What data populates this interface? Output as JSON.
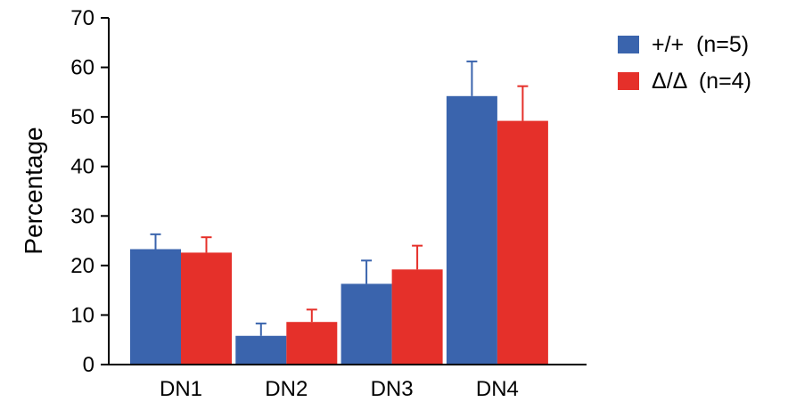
{
  "chart_data": {
    "type": "bar",
    "categories": [
      "DN1",
      "DN2",
      "DN3",
      "DN4"
    ],
    "series": [
      {
        "name": "+/+  (n=5)",
        "values": [
          23.3,
          5.8,
          16.3,
          54.2
        ],
        "errors": [
          3.0,
          2.5,
          4.7,
          7.0
        ],
        "color": "#3a64ad"
      },
      {
        "name": "Δ/Δ  (n=4)",
        "values": [
          22.6,
          8.6,
          19.2,
          49.2
        ],
        "errors": [
          3.1,
          2.5,
          4.8,
          7.0
        ],
        "color": "#e5302a"
      }
    ],
    "ylabel": "Percentage",
    "xlabel": "",
    "ylim": [
      0,
      70
    ],
    "yticks": [
      0,
      10,
      20,
      30,
      40,
      50,
      60,
      70
    ],
    "grid": false,
    "legend_position": "top-right"
  }
}
